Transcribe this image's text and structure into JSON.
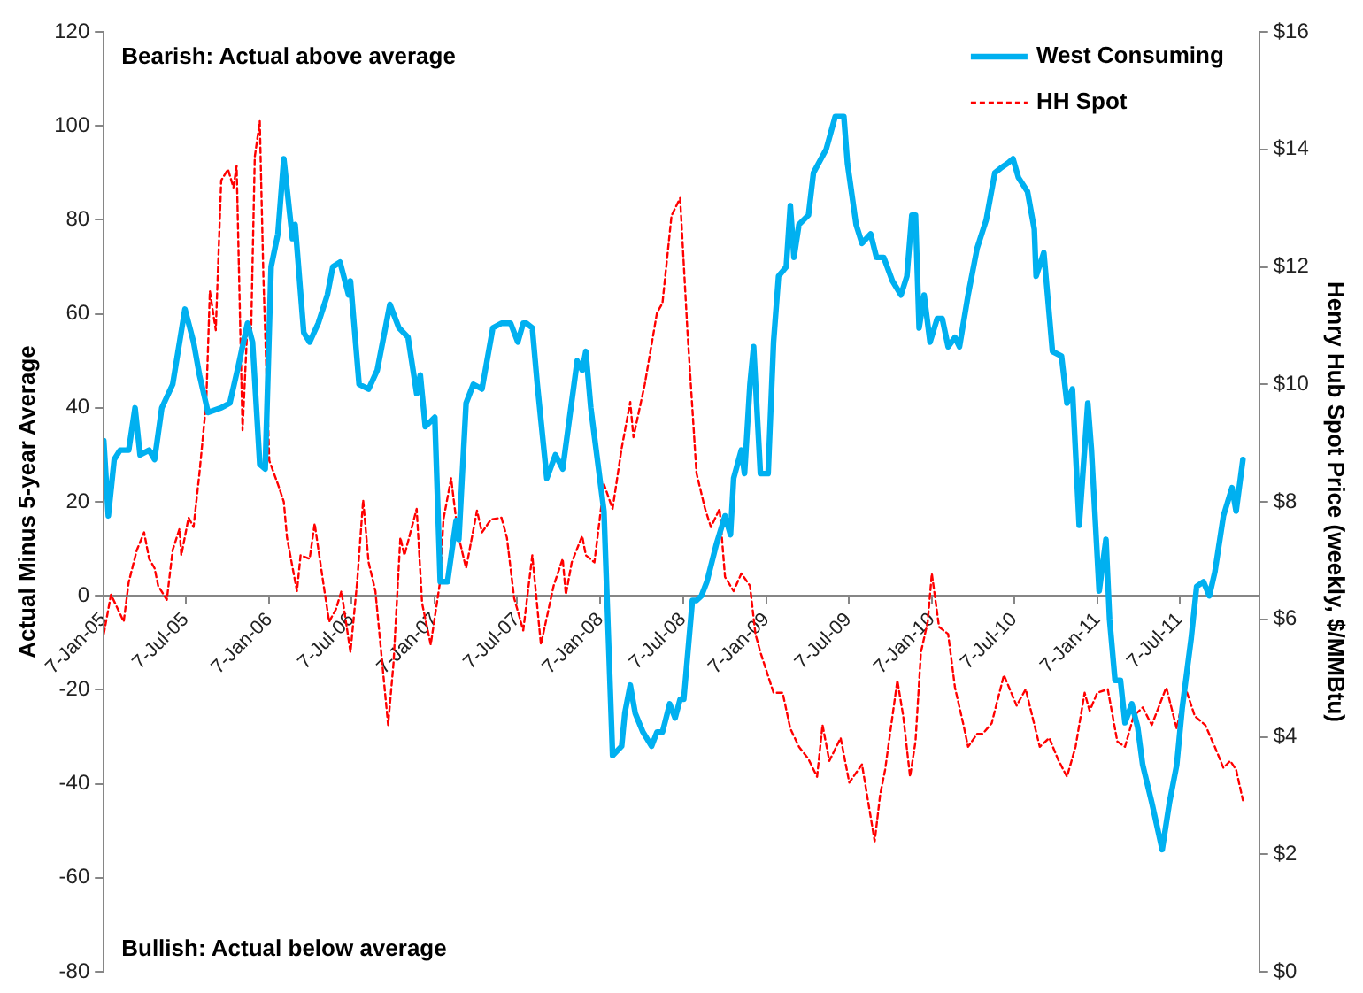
{
  "chart_data": {
    "type": "line",
    "ylabel": "Actual Minus 5-year Average",
    "y2label": "Henry Hub Spot Price (weekly, $/MMBtu)",
    "annotations": [
      "Bearish: Actual above average",
      "Bullish: Actual below average"
    ],
    "xlim": [
      "2005-01-07",
      "2011-12-30"
    ],
    "xticks": [
      {
        "value": "2005-01-07",
        "label": "7-Jan-05"
      },
      {
        "value": "2005-07-07",
        "label": "7-Jul-05"
      },
      {
        "value": "2006-01-07",
        "label": "7-Jan-06"
      },
      {
        "value": "2006-07-07",
        "label": "7-Jul-06"
      },
      {
        "value": "2007-01-07",
        "label": "7-Jan-07"
      },
      {
        "value": "2007-07-07",
        "label": "7-Jul-07"
      },
      {
        "value": "2008-01-07",
        "label": "7-Jan-08"
      },
      {
        "value": "2008-07-07",
        "label": "7-Jul-08"
      },
      {
        "value": "2009-01-07",
        "label": "7-Jan-09"
      },
      {
        "value": "2009-07-07",
        "label": "7-Jul-09"
      },
      {
        "value": "2010-01-07",
        "label": "7-Jan-10"
      },
      {
        "value": "2010-07-07",
        "label": "7-Jul-10"
      },
      {
        "value": "2011-01-07",
        "label": "7-Jan-11"
      },
      {
        "value": "2011-07-07",
        "label": "7-Jul-11"
      }
    ],
    "ylim": [
      -80,
      120
    ],
    "yticks": [
      -80,
      -60,
      -40,
      -20,
      0,
      20,
      40,
      60,
      80,
      100,
      120
    ],
    "y2lim": [
      0,
      16
    ],
    "y2ticks": [
      {
        "value": 0,
        "label": "$0"
      },
      {
        "value": 2,
        "label": "$2"
      },
      {
        "value": 4,
        "label": "$4"
      },
      {
        "value": 6,
        "label": "$6"
      },
      {
        "value": 8,
        "label": "$8"
      },
      {
        "value": 10,
        "label": "$10"
      },
      {
        "value": 12,
        "label": "$12"
      },
      {
        "value": 14,
        "label": "$14"
      },
      {
        "value": 16,
        "label": "$16"
      }
    ],
    "grid": false,
    "legend": "top right",
    "marker": "none",
    "series": [
      {
        "name": "West Consuming",
        "color": "#00b0f0",
        "line_style": "solid",
        "x": [
          "2005-01-07",
          "2005-01-17",
          "2005-01-30",
          "2005-02-12",
          "2005-03-03",
          "2005-03-17",
          "2005-03-28",
          "2005-04-17",
          "2005-04-29",
          "2005-05-15",
          "2005-06-08",
          "2005-07-05",
          "2005-07-24",
          "2005-08-06",
          "2005-08-25",
          "2005-09-23",
          "2005-10-12",
          "2005-10-31",
          "2005-11-20",
          "2005-12-01",
          "2005-12-17",
          "2005-12-29",
          "2006-01-11",
          "2006-01-26",
          "2006-02-08",
          "2006-02-27",
          "2006-03-05",
          "2006-03-24",
          "2006-04-06",
          "2006-04-25",
          "2006-05-15",
          "2006-05-27",
          "2006-06-12",
          "2006-07-01",
          "2006-07-05",
          "2006-07-24",
          "2006-08-14",
          "2006-09-02",
          "2006-09-30",
          "2006-10-20",
          "2006-11-09",
          "2006-11-28",
          "2006-12-06",
          "2006-12-17",
          "2007-01-07",
          "2007-01-19",
          "2007-02-04",
          "2007-02-23",
          "2007-03-01",
          "2007-03-17",
          "2007-04-02",
          "2007-04-21",
          "2007-05-15",
          "2007-06-03",
          "2007-06-23",
          "2007-07-09",
          "2007-07-21",
          "2007-07-28",
          "2007-08-10",
          "2007-08-21",
          "2007-09-11",
          "2007-09-30",
          "2007-10-16",
          "2007-11-17",
          "2007-11-28",
          "2007-12-06",
          "2007-12-17",
          "2008-01-15",
          "2008-02-03",
          "2008-02-23",
          "2008-03-01",
          "2008-03-13",
          "2008-03-24",
          "2008-04-10",
          "2008-04-29",
          "2008-05-11",
          "2008-05-23",
          "2008-06-08",
          "2008-06-20",
          "2008-07-01",
          "2008-07-09",
          "2008-07-28",
          "2008-08-06",
          "2008-08-17",
          "2008-08-29",
          "2008-09-19",
          "2008-10-08",
          "2008-10-20",
          "2008-10-27",
          "2008-11-13",
          "2008-11-20",
          "2008-12-02",
          "2008-12-10",
          "2008-12-25",
          "2009-01-11",
          "2009-01-23",
          "2009-02-03",
          "2009-02-20",
          "2009-03-01",
          "2009-03-09",
          "2009-03-20",
          "2009-04-10",
          "2009-04-21",
          "2009-05-19",
          "2009-06-08",
          "2009-06-27",
          "2009-07-05",
          "2009-07-24",
          "2009-08-06",
          "2009-08-25",
          "2009-09-07",
          "2009-09-23",
          "2009-10-12",
          "2009-10-31",
          "2009-11-13",
          "2009-11-24",
          "2009-12-02",
          "2009-12-10",
          "2009-12-21",
          "2010-01-03",
          "2010-01-19",
          "2010-01-30",
          "2010-02-12",
          "2010-02-27",
          "2010-03-09",
          "2010-03-28",
          "2010-04-17",
          "2010-05-07",
          "2010-05-26",
          "2010-06-08",
          "2010-06-23",
          "2010-07-05",
          "2010-07-17",
          "2010-08-06",
          "2010-08-21",
          "2010-08-25",
          "2010-09-11",
          "2010-09-30",
          "2010-10-20",
          "2010-11-01",
          "2010-11-13",
          "2010-11-28",
          "2010-12-17",
          "2010-12-25",
          "2011-01-11",
          "2011-01-26",
          "2011-02-03",
          "2011-02-15",
          "2011-02-27",
          "2011-03-09",
          "2011-03-24",
          "2011-04-06",
          "2011-04-17",
          "2011-05-07",
          "2011-05-30",
          "2011-06-15",
          "2011-07-01",
          "2011-07-13",
          "2011-08-02",
          "2011-08-14",
          "2011-08-29",
          "2011-09-11",
          "2011-09-23",
          "2011-10-12",
          "2011-10-31",
          "2011-11-09",
          "2011-11-24"
        ],
        "values": [
          33,
          17,
          29,
          31,
          31,
          40,
          30,
          31,
          29,
          40,
          45,
          61,
          54,
          47,
          39,
          40,
          41,
          49,
          58,
          54,
          28,
          27,
          70,
          77,
          93,
          76,
          79,
          56,
          54,
          58,
          64,
          70,
          71,
          64,
          67,
          45,
          44,
          48,
          62,
          57,
          55,
          43,
          47,
          36,
          38,
          3,
          3,
          16,
          12,
          41,
          45,
          44,
          57,
          58,
          58,
          54,
          58,
          58,
          57,
          45,
          25,
          30,
          27,
          50,
          48,
          52,
          40,
          18,
          -34,
          -32,
          -25,
          -19,
          -25,
          -29,
          -32,
          -29,
          -29,
          -23,
          -26,
          -22,
          -22,
          -1,
          -1,
          0,
          3,
          11,
          17,
          13,
          25,
          31,
          26,
          45,
          53,
          26,
          26,
          54,
          68,
          70,
          83,
          72,
          79,
          81,
          90,
          95,
          102,
          102,
          92,
          79,
          75,
          77,
          72,
          72,
          67,
          64,
          68,
          81,
          81,
          57,
          64,
          54,
          59,
          59,
          53,
          55,
          53,
          64,
          74,
          80,
          90,
          91,
          92,
          93,
          89,
          86,
          78,
          68,
          73,
          52,
          51,
          41,
          44,
          15,
          41,
          31,
          1,
          12,
          -5,
          -18,
          -18,
          -27,
          -23,
          -28,
          -36,
          -44,
          -54,
          -44,
          -36,
          -24,
          -9,
          2,
          3,
          0,
          5,
          17,
          23,
          18,
          29
        ]
      },
      {
        "name": "HH Spot",
        "color": "#ff0000",
        "axis": "y2",
        "line_style": "dashed",
        "x": [
          "2005-01-07",
          "2005-01-23",
          "2005-02-20",
          "2005-03-03",
          "2005-03-21",
          "2005-04-06",
          "2005-04-17",
          "2005-04-29",
          "2005-05-07",
          "2005-05-26",
          "2005-06-08",
          "2005-06-23",
          "2005-06-27",
          "2005-07-13",
          "2005-07-24",
          "2005-08-06",
          "2005-08-21",
          "2005-08-29",
          "2005-09-11",
          "2005-09-23",
          "2005-10-08",
          "2005-10-20",
          "2005-10-27",
          "2005-11-09",
          "2005-11-20",
          "2005-11-28",
          "2005-12-06",
          "2005-12-17",
          "2005-12-25",
          "2006-01-07",
          "2006-01-26",
          "2006-02-08",
          "2006-02-15",
          "2006-03-09",
          "2006-03-17",
          "2006-04-06",
          "2006-04-17",
          "2006-05-07",
          "2006-05-19",
          "2006-06-03",
          "2006-06-15",
          "2006-07-05",
          "2006-07-20",
          "2006-08-02",
          "2006-08-14",
          "2006-08-29",
          "2006-09-26",
          "2006-10-08",
          "2006-10-23",
          "2006-11-01",
          "2006-11-28",
          "2006-12-10",
          "2006-12-29",
          "2007-01-19",
          "2007-01-26",
          "2007-02-12",
          "2007-02-23",
          "2007-03-01",
          "2007-03-17",
          "2007-04-10",
          "2007-04-21",
          "2007-05-11",
          "2007-06-03",
          "2007-06-15",
          "2007-07-01",
          "2007-07-21",
          "2007-08-10",
          "2007-08-29",
          "2007-09-26",
          "2007-10-16",
          "2007-10-23",
          "2007-11-05",
          "2007-11-28",
          "2007-12-06",
          "2007-12-25",
          "2008-01-15",
          "2008-02-03",
          "2008-02-23",
          "2008-03-13",
          "2008-03-20",
          "2008-04-14",
          "2008-05-11",
          "2008-05-23",
          "2008-06-12",
          "2008-07-01",
          "2008-07-17",
          "2008-08-06",
          "2008-08-25",
          "2008-09-07",
          "2008-09-26",
          "2008-10-08",
          "2008-10-27",
          "2008-11-13",
          "2008-12-02",
          "2008-12-14",
          "2008-12-25",
          "2009-01-23",
          "2009-02-12",
          "2009-03-01",
          "2009-03-20",
          "2009-04-10",
          "2009-04-29",
          "2009-05-11",
          "2009-05-26",
          "2009-06-20",
          "2009-07-09",
          "2009-08-06",
          "2009-09-03",
          "2009-09-15",
          "2009-09-26",
          "2009-10-23",
          "2009-11-05",
          "2009-11-20",
          "2009-12-02",
          "2009-12-14",
          "2009-12-29",
          "2010-01-07",
          "2010-01-23",
          "2010-02-12",
          "2010-02-27",
          "2010-03-17",
          "2010-03-28",
          "2010-04-17",
          "2010-04-29",
          "2010-05-19",
          "2010-06-15",
          "2010-07-13",
          "2010-08-02",
          "2010-09-02",
          "2010-09-23",
          "2010-10-12",
          "2010-11-01",
          "2010-11-20",
          "2010-12-10",
          "2010-12-21",
          "2011-01-07",
          "2011-01-30",
          "2011-02-20",
          "2011-03-09",
          "2011-03-28",
          "2011-04-17",
          "2011-05-07",
          "2011-06-08",
          "2011-07-01",
          "2011-07-20",
          "2011-08-10",
          "2011-09-02",
          "2011-09-23",
          "2011-10-12",
          "2011-10-27",
          "2011-11-09",
          "2011-11-24"
        ],
        "values": [
          5.75,
          6.42,
          5.96,
          6.63,
          7.18,
          7.48,
          7.03,
          6.87,
          6.57,
          6.33,
          7.18,
          7.54,
          7.09,
          7.73,
          7.57,
          8.49,
          9.7,
          11.59,
          10.92,
          13.47,
          13.66,
          13.35,
          13.72,
          9.22,
          11.04,
          10.92,
          13.87,
          14.48,
          11.83,
          8.7,
          8.3,
          8.0,
          7.39,
          6.48,
          7.09,
          7.03,
          7.63,
          6.57,
          5.96,
          6.17,
          6.48,
          5.44,
          6.66,
          8.03,
          6.97,
          6.48,
          4.2,
          5.26,
          7.39,
          7.09,
          7.88,
          6.27,
          5.57,
          6.66,
          7.7,
          8.4,
          7.7,
          7.39,
          6.87,
          7.85,
          7.48,
          7.7,
          7.73,
          7.39,
          6.36,
          5.81,
          7.09,
          5.57,
          6.57,
          7.03,
          6.42,
          6.97,
          7.42,
          7.09,
          6.97,
          8.3,
          7.88,
          8.91,
          9.7,
          9.1,
          10.0,
          11.22,
          11.38,
          12.87,
          13.17,
          10.92,
          8.49,
          7.88,
          7.57,
          7.88,
          6.72,
          6.48,
          6.78,
          6.57,
          5.75,
          5.44,
          4.75,
          4.75,
          4.14,
          3.83,
          3.62,
          3.32,
          4.2,
          3.59,
          3.98,
          3.22,
          3.53,
          2.22,
          3.01,
          3.44,
          4.96,
          4.35,
          3.32,
          3.92,
          5.44,
          5.96,
          6.78,
          5.87,
          5.75,
          4.84,
          4.23,
          3.83,
          4.05,
          4.05,
          4.23,
          5.05,
          4.53,
          4.81,
          3.83,
          3.98,
          3.62,
          3.32,
          3.83,
          4.75,
          4.44,
          4.75,
          4.81,
          3.92,
          3.83,
          4.35,
          4.5,
          4.2,
          4.84,
          4.14,
          4.84,
          4.35,
          4.2,
          3.83,
          3.47,
          3.59,
          3.44,
          2.92
        ]
      }
    ]
  }
}
